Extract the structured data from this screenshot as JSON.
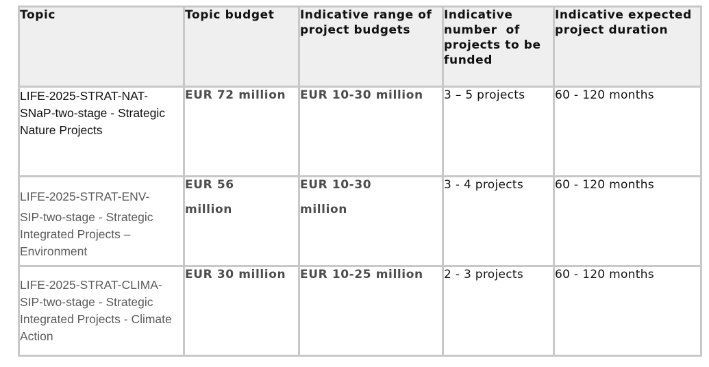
{
  "table": {
    "headers": [
      "Topic",
      "Topic budget",
      "Indicative range of project budgets",
      "Indicative number  of projects to be funded",
      "Indicative expected project duration"
    ],
    "rows": [
      {
        "topic": "LIFE-2025-STRAT-NAT-SNaP-two-stage - Strategic Nature Projects",
        "budget": "EUR 72 million",
        "range": "EUR 10-30 million",
        "projects": "3 – 5 projects",
        "duration": "60 - 120 months"
      },
      {
        "topic_line1": "LIFE-2025-STRAT-ENV-",
        "topic_line2": "SIP-two-stage - Strategic Integrated Projects – Environment",
        "budget_line1": "EUR 56",
        "budget_line2": "million",
        "range_line1": "EUR 10-30",
        "range_line2": "million",
        "projects": "3 - 4 projects",
        "duration": "60 - 120 months"
      },
      {
        "topic": "LIFE-2025-STRAT-CLIMA-SIP-two-stage - Strategic Integrated Projects - Climate Action",
        "budget": "EUR 30 million",
        "range": "EUR 10-25 million",
        "projects": "2 - 3 projects",
        "duration": "60 - 120 months"
      }
    ]
  }
}
